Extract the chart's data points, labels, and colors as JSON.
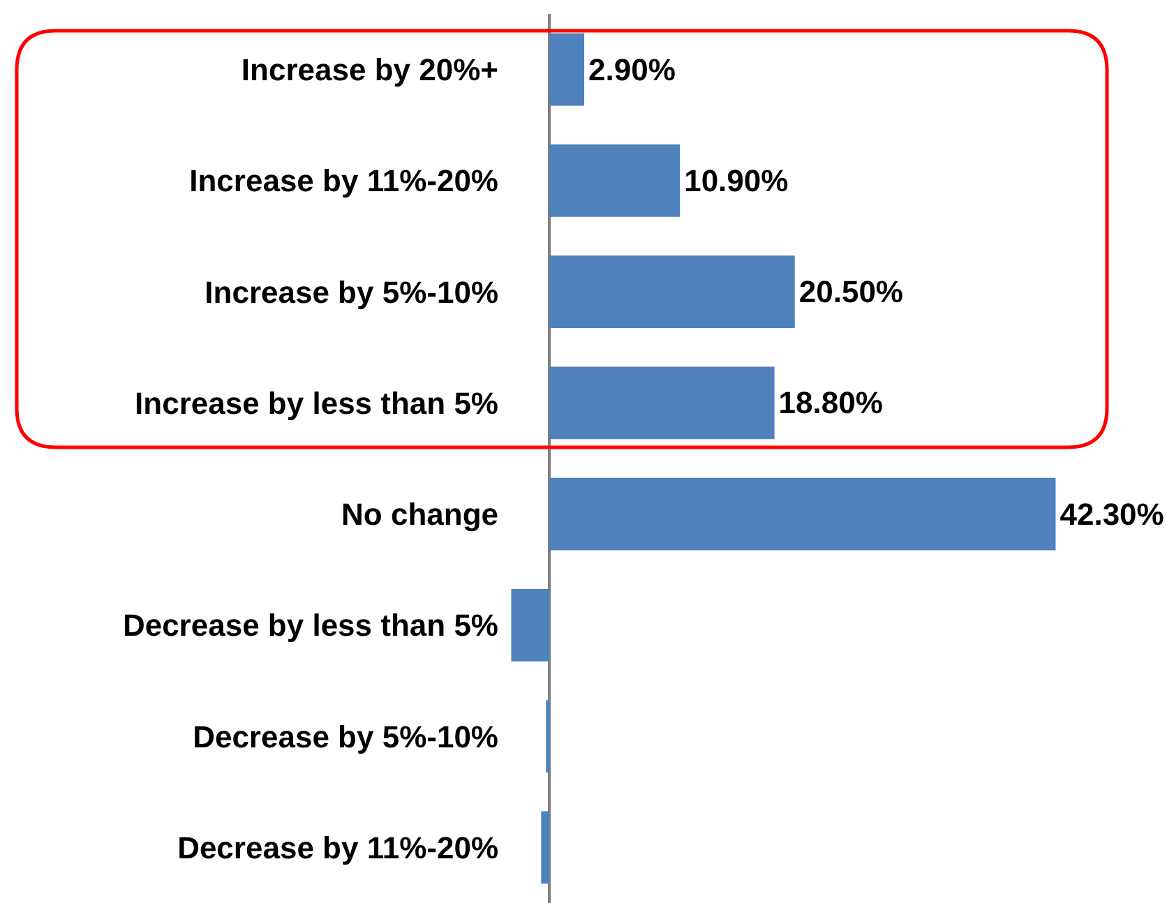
{
  "chart_data": {
    "type": "bar",
    "orientation": "horizontal",
    "categories": [
      "Increase by 20%+",
      "Increase by 11%-20%",
      "Increase by 5%-10%",
      "Increase by less than 5%",
      "No change",
      "Decrease by less than 5%",
      "Decrease by 5%-10%",
      "Decrease by 11%-20%"
    ],
    "values": [
      2.9,
      10.9,
      20.5,
      18.8,
      42.3,
      -3.2,
      -0.3,
      -0.7
    ],
    "value_labels": [
      "2.90%",
      "10.90%",
      "20.50%",
      "18.80%",
      "42.30%",
      null,
      null,
      null
    ],
    "color": "#4f81bd"
  }
}
